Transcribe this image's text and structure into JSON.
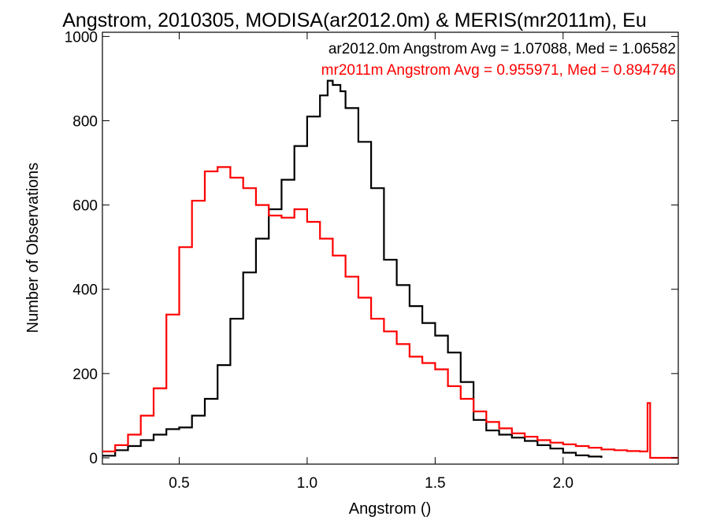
{
  "chart_data": {
    "type": "line",
    "step": true,
    "title": "Angstrom, 2010305, MODISA(ar2012.0m) & MERIS(mr2011m), Eu",
    "xlabel": "Angstrom ()",
    "ylabel": "Number of Observations",
    "xlim": [
      0.2,
      2.45
    ],
    "ylim": [
      -15,
      1010
    ],
    "xticks": [
      0.5,
      1.0,
      1.5,
      2.0
    ],
    "xtick_labels": [
      "0.5",
      "1.0",
      "1.5",
      "2.0"
    ],
    "yticks": [
      0,
      200,
      400,
      600,
      800,
      1000
    ],
    "ytick_labels": [
      "0",
      "200",
      "400",
      "600",
      "800",
      "1000"
    ],
    "grid": false,
    "annotations": [
      {
        "text": "ar2012.0m Angstrom Avg = 1.07088, Med = 1.06582",
        "color": "#000000"
      },
      {
        "text": "mr2011m Angstrom Avg = 0.955971, Med = 0.894746",
        "color": "#ff0000"
      }
    ],
    "series": [
      {
        "color": "#000000",
        "points": [
          [
            0.2,
            5
          ],
          [
            0.25,
            18
          ],
          [
            0.3,
            28
          ],
          [
            0.35,
            42
          ],
          [
            0.4,
            55
          ],
          [
            0.45,
            68
          ],
          [
            0.5,
            72
          ],
          [
            0.55,
            100
          ],
          [
            0.6,
            140
          ],
          [
            0.65,
            220
          ],
          [
            0.7,
            330
          ],
          [
            0.75,
            440
          ],
          [
            0.8,
            520
          ],
          [
            0.85,
            590
          ],
          [
            0.9,
            660
          ],
          [
            0.95,
            740
          ],
          [
            1.0,
            810
          ],
          [
            1.05,
            860
          ],
          [
            1.08,
            895
          ],
          [
            1.1,
            885
          ],
          [
            1.13,
            870
          ],
          [
            1.15,
            830
          ],
          [
            1.2,
            750
          ],
          [
            1.25,
            640
          ],
          [
            1.3,
            470
          ],
          [
            1.35,
            410
          ],
          [
            1.4,
            360
          ],
          [
            1.45,
            320
          ],
          [
            1.5,
            290
          ],
          [
            1.55,
            250
          ],
          [
            1.6,
            180
          ],
          [
            1.65,
            90
          ],
          [
            1.7,
            65
          ],
          [
            1.75,
            55
          ],
          [
            1.8,
            48
          ],
          [
            1.85,
            40
          ],
          [
            1.9,
            30
          ],
          [
            1.95,
            22
          ],
          [
            2.0,
            12
          ],
          [
            2.05,
            6
          ],
          [
            2.1,
            3
          ],
          [
            2.15,
            0
          ]
        ]
      },
      {
        "color": "#ff0000",
        "points": [
          [
            0.2,
            15
          ],
          [
            0.25,
            30
          ],
          [
            0.3,
            55
          ],
          [
            0.35,
            100
          ],
          [
            0.4,
            165
          ],
          [
            0.45,
            340
          ],
          [
            0.5,
            500
          ],
          [
            0.55,
            610
          ],
          [
            0.6,
            680
          ],
          [
            0.65,
            690
          ],
          [
            0.7,
            665
          ],
          [
            0.75,
            640
          ],
          [
            0.8,
            600
          ],
          [
            0.85,
            575
          ],
          [
            0.9,
            570
          ],
          [
            0.95,
            590
          ],
          [
            1.0,
            560
          ],
          [
            1.05,
            520
          ],
          [
            1.1,
            480
          ],
          [
            1.15,
            430
          ],
          [
            1.2,
            380
          ],
          [
            1.25,
            330
          ],
          [
            1.3,
            300
          ],
          [
            1.35,
            270
          ],
          [
            1.4,
            240
          ],
          [
            1.45,
            225
          ],
          [
            1.5,
            210
          ],
          [
            1.55,
            170
          ],
          [
            1.6,
            140
          ],
          [
            1.65,
            110
          ],
          [
            1.7,
            85
          ],
          [
            1.75,
            70
          ],
          [
            1.8,
            58
          ],
          [
            1.85,
            50
          ],
          [
            1.9,
            42
          ],
          [
            1.95,
            36
          ],
          [
            2.0,
            32
          ],
          [
            2.05,
            28
          ],
          [
            2.1,
            24
          ],
          [
            2.15,
            20
          ],
          [
            2.2,
            18
          ],
          [
            2.25,
            16
          ],
          [
            2.3,
            15
          ],
          [
            2.33,
            130
          ],
          [
            2.34,
            0
          ],
          [
            2.45,
            0
          ]
        ]
      }
    ]
  }
}
